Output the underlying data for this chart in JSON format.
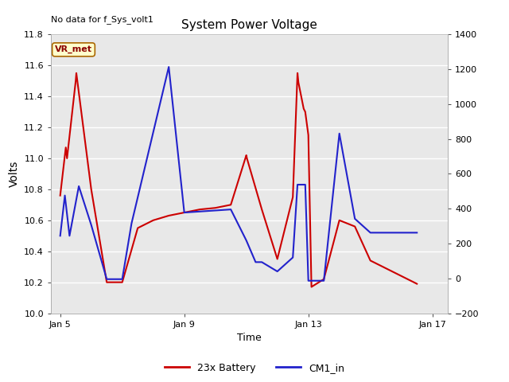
{
  "title": "System Power Voltage",
  "top_left_text": "No data for f_Sys_volt1",
  "xlabel": "Time",
  "ylabel_left": "Volts",
  "annotation_box": "VR_met",
  "fig_bg_color": "#ffffff",
  "plot_bg_color": "#e8e8e8",
  "grid_color": "#ffffff",
  "legend_entries": [
    "23x Battery",
    "CM1_in"
  ],
  "legend_colors": [
    "#cc0000",
    "#2222cc"
  ],
  "red_x": [
    5.0,
    5.18,
    5.22,
    5.5,
    5.52,
    6.0,
    6.5,
    7.0,
    7.5,
    8.0,
    8.5,
    9.0,
    9.5,
    10.0,
    10.5,
    11.0,
    11.02,
    11.5,
    12.0,
    12.5,
    12.65,
    12.68,
    12.85,
    12.9,
    13.0,
    13.1,
    13.5,
    14.0,
    14.5,
    15.0,
    16.5
  ],
  "red_y": [
    10.76,
    11.07,
    11.0,
    11.5,
    11.55,
    10.8,
    10.2,
    10.2,
    10.55,
    10.6,
    10.63,
    10.65,
    10.67,
    10.68,
    10.7,
    11.02,
    11.0,
    10.67,
    10.35,
    10.75,
    11.55,
    11.49,
    11.32,
    11.3,
    11.15,
    10.17,
    10.22,
    10.6,
    10.56,
    10.34,
    10.19
  ],
  "blue_x": [
    5.0,
    5.15,
    5.3,
    5.6,
    6.0,
    6.5,
    7.0,
    7.3,
    8.5,
    9.0,
    10.5,
    11.0,
    11.3,
    11.5,
    12.0,
    12.5,
    12.65,
    12.7,
    12.9,
    13.0,
    13.5,
    14.0,
    14.5,
    15.0,
    16.5
  ],
  "blue_y": [
    10.5,
    10.76,
    10.5,
    10.82,
    10.57,
    10.22,
    10.22,
    10.58,
    11.59,
    10.65,
    10.67,
    10.47,
    10.33,
    10.33,
    10.27,
    10.36,
    10.83,
    10.83,
    10.83,
    10.21,
    10.21,
    11.16,
    10.61,
    10.52,
    10.52
  ],
  "xlim": [
    4.7,
    17.5
  ],
  "ylim_left": [
    10.0,
    11.8
  ],
  "ylim_right": [
    -200,
    1400
  ],
  "xtick_positions": [
    5,
    9,
    13,
    17
  ],
  "xtick_labels": [
    "Jan 5",
    "Jan 9",
    "Jan 13",
    "Jan 17"
  ],
  "ytick_left": [
    10.0,
    10.2,
    10.4,
    10.6,
    10.8,
    11.0,
    11.2,
    11.4,
    11.6,
    11.8
  ],
  "ytick_right": [
    -200,
    0,
    200,
    400,
    600,
    800,
    1000,
    1200,
    1400
  ],
  "line_width": 1.5,
  "figsize": [
    6.4,
    4.8
  ],
  "dpi": 100
}
